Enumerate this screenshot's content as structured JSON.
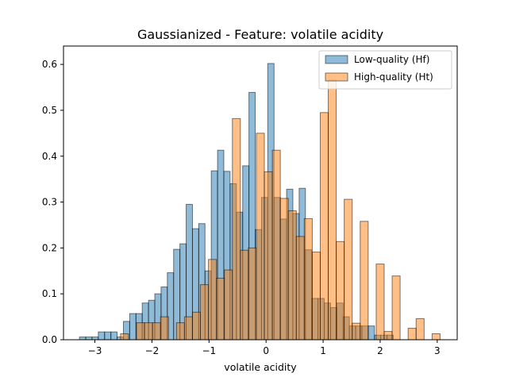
{
  "chart_data": {
    "type": "bar",
    "title": "Gaussianized - Feature: volatile acidity",
    "xlabel": "volatile acidity",
    "ylabel": "",
    "xlim": [
      -3.55,
      3.35
    ],
    "ylim": [
      0,
      0.64
    ],
    "xticks": [
      -3,
      -2,
      -1,
      0,
      1,
      2,
      3
    ],
    "yticks": [
      0.0,
      0.1,
      0.2,
      0.3,
      0.4,
      0.5,
      0.6
    ],
    "grid": false,
    "legend_position": "top-right",
    "colors": {
      "low": "#1f77b4",
      "high": "#ff7f0e"
    },
    "series": [
      {
        "name": "Low-quality (Hf)",
        "bin_edges": [
          -3.27,
          -3.16,
          -3.05,
          -2.94,
          -2.83,
          -2.72,
          -2.61,
          -2.5,
          -2.39,
          -2.28,
          -2.17,
          -2.06,
          -1.95,
          -1.84,
          -1.73,
          -1.62,
          -1.51,
          -1.4,
          -1.29,
          -1.18,
          -1.07,
          -0.96,
          -0.85,
          -0.74,
          -0.63,
          -0.52,
          -0.41,
          -0.3,
          -0.19,
          -0.08,
          0.03,
          0.14,
          0.25,
          0.36,
          0.47,
          0.58,
          0.69,
          0.8,
          0.91,
          1.02,
          1.13,
          1.24,
          1.35,
          1.46,
          1.57,
          1.68,
          1.79,
          1.9,
          2.01,
          2.12,
          2.23
        ],
        "values": [
          0.006,
          0.006,
          0.006,
          0.017,
          0.017,
          0.017,
          0.006,
          0.04,
          0.057,
          0.057,
          0.08,
          0.086,
          0.1,
          0.115,
          0.146,
          0.197,
          0.209,
          0.295,
          0.242,
          0.253,
          0.15,
          0.368,
          0.413,
          0.367,
          0.34,
          0.278,
          0.379,
          0.539,
          0.24,
          0.31,
          0.602,
          0.31,
          0.263,
          0.328,
          0.275,
          0.33,
          0.196,
          0.09,
          0.09,
          0.08,
          0.07,
          0.08,
          0.05,
          0.03,
          0.03,
          0.03,
          0.03,
          0.01,
          0.01,
          0.01
        ]
      },
      {
        "name": "High-quality (Ht)",
        "bin_edges": [
          -2.55,
          -2.41,
          -2.27,
          -2.13,
          -1.99,
          -1.85,
          -1.71,
          -1.57,
          -1.43,
          -1.29,
          -1.15,
          -1.01,
          -0.87,
          -0.73,
          -0.59,
          -0.45,
          -0.31,
          -0.17,
          -0.03,
          0.11,
          0.25,
          0.39,
          0.53,
          0.67,
          0.81,
          0.95,
          1.09,
          1.23,
          1.37,
          1.51,
          1.65,
          1.79,
          1.93,
          2.07,
          2.21,
          2.35,
          2.49,
          2.63,
          2.77,
          2.91,
          3.05
        ],
        "values": [
          0.013,
          0.0,
          0.037,
          0.037,
          0.037,
          0.05,
          0.0,
          0.037,
          0.05,
          0.06,
          0.12,
          0.175,
          0.134,
          0.152,
          0.482,
          0.195,
          0.2,
          0.45,
          0.366,
          0.413,
          0.308,
          0.281,
          0.225,
          0.264,
          0.191,
          0.495,
          0.566,
          0.214,
          0.306,
          0.036,
          0.258,
          0.0,
          0.165,
          0.018,
          0.139,
          0.0,
          0.025,
          0.046,
          0.0,
          0.013
        ]
      }
    ]
  }
}
